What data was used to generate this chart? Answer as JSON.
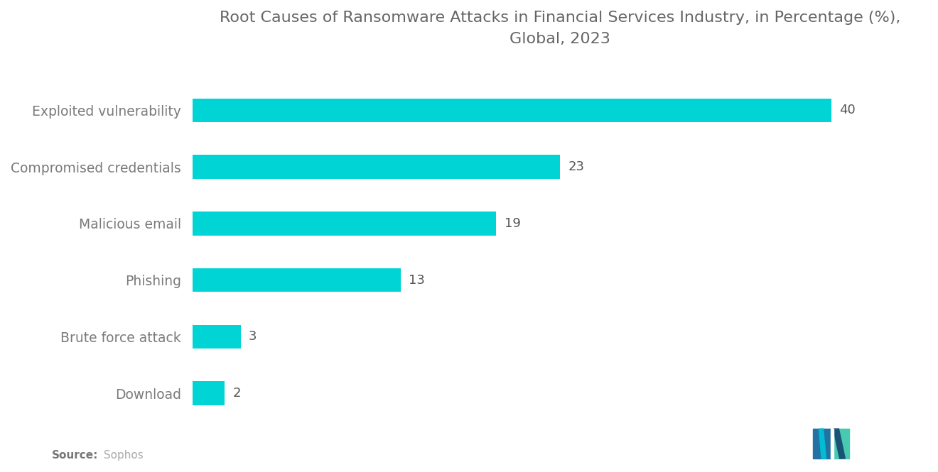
{
  "title": "Root Causes of Ransomware Attacks in Financial Services Industry, in Percentage (%),\nGlobal, 2023",
  "categories": [
    "Download",
    "Brute force attack",
    "Phishing",
    "Malicious email",
    "Compromised credentials",
    "Exploited vulnerability"
  ],
  "values": [
    2,
    3,
    13,
    19,
    23,
    40
  ],
  "bar_color": "#00D4D4",
  "label_color": "#7a7a7a",
  "value_color": "#555555",
  "title_color": "#666666",
  "background_color": "#ffffff",
  "source_label_bold": "Source:",
  "source_label_text": " Sophos",
  "source_color_bold": "#777777",
  "source_color_text": "#aaaaaa",
  "xlim": [
    0,
    46
  ],
  "bar_height": 0.42,
  "title_fontsize": 16,
  "label_fontsize": 13.5,
  "value_fontsize": 13
}
